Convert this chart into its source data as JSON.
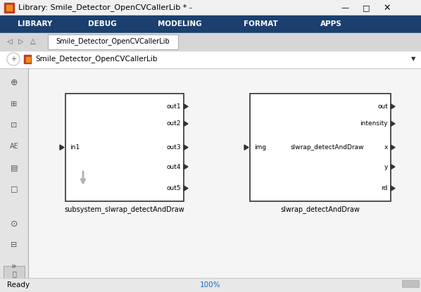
{
  "title_bar": "Library: Smile_Detector_OpenCVCallerLib * -",
  "menu_bg": "#1b3f6e",
  "menu_items": [
    "LIBRARY",
    "DEBUG",
    "MODELING",
    "FORMAT",
    "APPS"
  ],
  "menu_text_color": "#ffffff",
  "tab_text": "Smile_Detector_OpenCVCallerLib",
  "breadcrumb_text": "Smile_Detector_OpenCVCallerLib",
  "block1_label": "subsystem_slwrap_detectAndDraw",
  "block1_in_ports": [
    "in1"
  ],
  "block1_out_ports": [
    "out1",
    "out2",
    "out3",
    "out4",
    "out5"
  ],
  "block2_label": "slwrap_detectAndDraw",
  "block2_in_ports": [
    "img"
  ],
  "block2_center_label": "slwrap_detectAndDraw",
  "block2_out_ports": [
    "out",
    "intensity",
    "x",
    "y",
    "rd"
  ],
  "status_bar_text": "Ready",
  "zoom_text": "100%",
  "window_bg": "#f0f0f0"
}
